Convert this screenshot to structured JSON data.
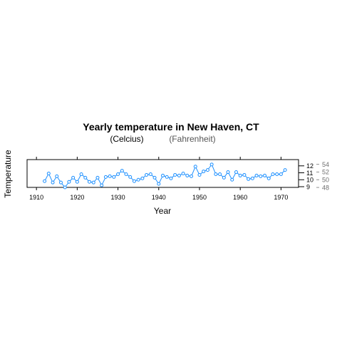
{
  "chart_data": {
    "type": "line",
    "title": "Yearly temperature in New Haven, CT",
    "subtitle_left": "(Celcius)",
    "subtitle_right": "(Fahrenheit)",
    "xlabel": "Year",
    "ylabel": "Temperature",
    "x_ticks": [
      1910,
      1920,
      1930,
      1940,
      1950,
      1960,
      1970
    ],
    "y_ticks_left": [
      9,
      10,
      11,
      12
    ],
    "y_ticks_right": [
      48,
      50,
      52,
      54
    ],
    "xlim": [
      1907.7,
      1974.3
    ],
    "ylim": [
      8.9,
      12.9
    ],
    "grid": false,
    "series": [
      {
        "color": "#1e90ff",
        "x": [
          1912,
          1913,
          1914,
          1915,
          1916,
          1917,
          1918,
          1919,
          1920,
          1921,
          1922,
          1923,
          1924,
          1925,
          1926,
          1927,
          1928,
          1929,
          1930,
          1931,
          1932,
          1933,
          1934,
          1935,
          1936,
          1937,
          1938,
          1939,
          1940,
          1941,
          1942,
          1943,
          1944,
          1945,
          1946,
          1947,
          1948,
          1949,
          1950,
          1951,
          1952,
          1953,
          1954,
          1955,
          1956,
          1957,
          1958,
          1959,
          1960,
          1961,
          1962,
          1963,
          1964,
          1965,
          1966,
          1967,
          1968,
          1969,
          1970,
          1971
        ],
        "y": [
          9.8,
          10.9,
          9.6,
          10.5,
          9.6,
          8.9,
          9.7,
          10.3,
          9.7,
          10.8,
          10.3,
          9.7,
          9.6,
          10.3,
          9.2,
          10.4,
          10.5,
          10.4,
          10.8,
          11.3,
          10.8,
          10.4,
          9.8,
          10.0,
          10.2,
          10.7,
          10.8,
          10.3,
          9.4,
          10.6,
          10.4,
          10.2,
          10.7,
          10.6,
          10.9,
          10.6,
          10.5,
          11.9,
          10.7,
          11.2,
          11.4,
          12.2,
          10.8,
          10.8,
          10.3,
          11.1,
          10.0,
          11.1,
          10.6,
          10.7,
          10.1,
          10.2,
          10.6,
          10.5,
          10.6,
          10.2,
          10.8,
          10.8,
          10.8,
          11.4
        ]
      }
    ]
  }
}
